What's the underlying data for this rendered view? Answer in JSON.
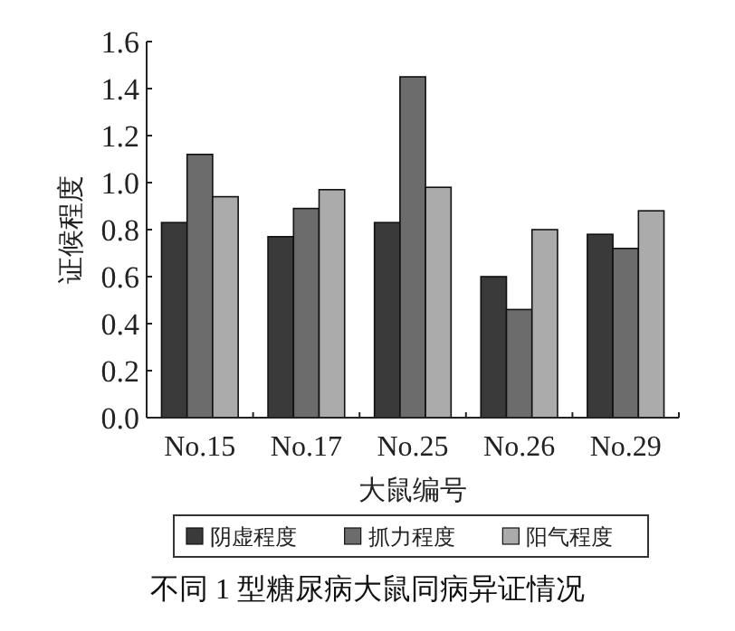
{
  "chart_data": {
    "type": "bar",
    "title": "不同 1 型糖尿病大鼠同病异证情况",
    "xlabel": "大鼠编号",
    "ylabel": "证候程度",
    "categories": [
      "No.15",
      "No.17",
      "No.25",
      "No.26",
      "No.29"
    ],
    "series": [
      {
        "name": "阴虚程度",
        "color": "#3a3a3a",
        "values": [
          0.83,
          0.77,
          0.83,
          0.6,
          0.78
        ]
      },
      {
        "name": "抓力程度",
        "color": "#6c6c6c",
        "values": [
          1.12,
          0.89,
          1.45,
          0.46,
          0.72
        ]
      },
      {
        "name": "阳气程度",
        "color": "#ababab",
        "values": [
          0.94,
          0.97,
          0.98,
          0.8,
          0.88
        ]
      }
    ],
    "ylim": [
      0,
      1.6
    ],
    "yticks": [
      {
        "value": 0,
        "label": "0.0"
      },
      0.2,
      0.4,
      0.6,
      0.8,
      {
        "value": 1,
        "label": "1.0"
      },
      1.2,
      1.4,
      1.6
    ],
    "legend": "bottom",
    "grid": false
  }
}
